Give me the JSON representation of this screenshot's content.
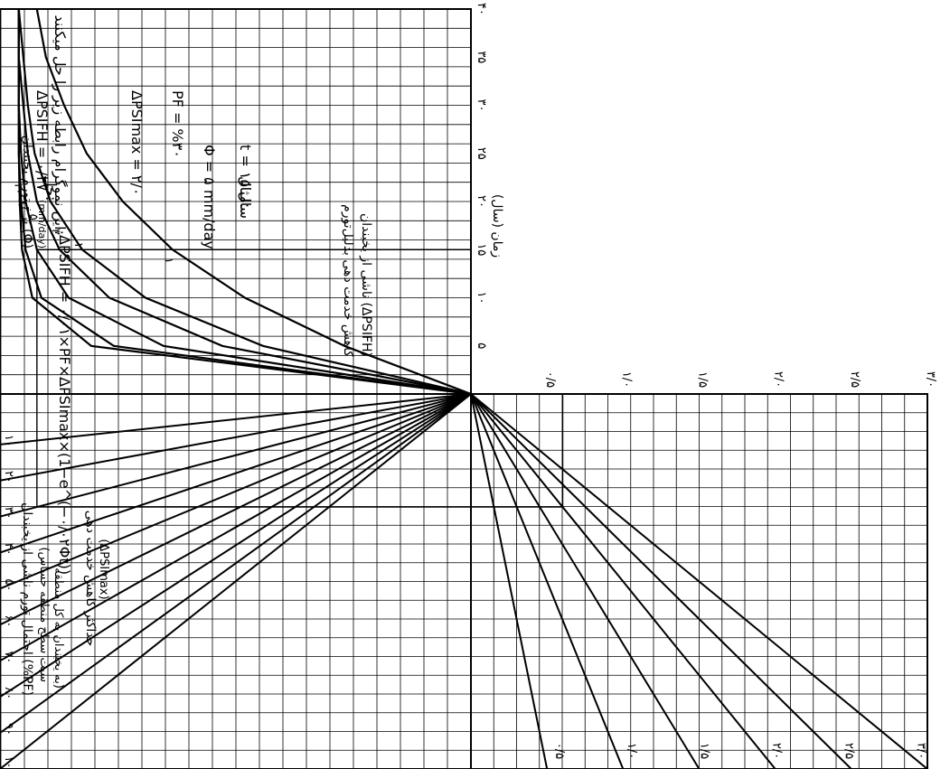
{
  "chart_data": {
    "type": "line",
    "title": "",
    "time_axis": {
      "label": "زمان (سال)",
      "ticks": [
        "۵",
        "۱۰",
        "۱۵",
        "۲۰",
        "۲۵",
        "۳۰",
        "۳۵",
        "۴۰"
      ],
      "range": [
        0,
        40
      ]
    },
    "heave_rate": {
      "title": "نرخ تورم یخبندان (Φ)",
      "unit": "(mm/day)",
      "curves": [
        {
          "label": "۱",
          "phi": 1,
          "x": [
            0,
            5,
            10,
            15,
            20,
            25,
            30,
            35,
            40
          ],
          "y": [
            0,
            0.28,
            0.5,
            0.66,
            0.77,
            0.85,
            0.9,
            0.94,
            0.96
          ]
        },
        {
          "label": "۲",
          "phi": 2,
          "x": [
            0,
            5,
            10,
            15,
            20,
            25,
            30,
            35,
            40
          ],
          "y": [
            0,
            0.46,
            0.72,
            0.86,
            0.93,
            0.965,
            0.98,
            0.99,
            1.0
          ]
        },
        {
          "label": "۳",
          "phi": 3,
          "x": [
            0,
            5,
            10,
            15,
            20,
            25,
            30,
            35,
            40
          ],
          "y": [
            0,
            0.55,
            0.8,
            0.91,
            0.96,
            0.98,
            0.99,
            1.0,
            1.0
          ]
        },
        {
          "label": "۵",
          "phi": 5,
          "x": [
            0,
            5,
            10,
            15,
            20,
            25,
            30,
            35,
            40
          ],
          "y": [
            0,
            0.68,
            0.89,
            0.96,
            0.985,
            0.995,
            1.0,
            1.0,
            1.0
          ]
        },
        {
          "label": "۸",
          "phi": 8,
          "x": [
            0,
            5,
            10,
            15,
            20,
            25,
            30,
            35,
            40
          ],
          "y": [
            0,
            0.79,
            0.95,
            0.985,
            0.995,
            1.0,
            1.0,
            1.0,
            1.0
          ]
        },
        {
          "label": "۱۰",
          "phi": 10,
          "x": [
            0,
            5,
            10,
            15,
            20,
            25,
            30,
            35,
            40
          ],
          "y": [
            0,
            0.84,
            0.97,
            0.993,
            0.998,
            1.0,
            1.0,
            1.0,
            1.0
          ]
        }
      ]
    },
    "probability": {
      "title": "احتمال تورم ناشی از یخبندان (%PF)",
      "subtitle1": "(سبت سطح منطقه حساس",
      "subtitle2": "به یخبندان به کل منطقه)",
      "ticks": [
        "۱۰",
        "۲۰",
        "۳۰",
        "۴۰",
        "۵۰",
        "۶۰",
        "۷۰",
        "۸۰",
        "۹۰",
        "۱۰۰"
      ],
      "values": [
        10,
        20,
        30,
        40,
        50,
        60,
        70,
        80,
        90,
        100
      ]
    },
    "max_loss": {
      "title": "حداکثر کاهش خدمت دهی",
      "subtitle": "(ΔPSImax)",
      "labels": [
        "۰/۵",
        "۱/۰",
        "۱/۵",
        "۲/۰",
        "۲/۵",
        "۳/۰"
      ],
      "values": [
        0.5,
        1.0,
        1.5,
        2.0,
        2.5,
        3.0
      ]
    },
    "output_axis": {
      "label1": "کاهش خدمت دهی بدلیل‌تورم",
      "label2": "ناشی از یخبندان (ΔPSIFH)",
      "ticks": [
        "۰/۵",
        "۱/۰",
        "۱/۵",
        "۲/۰",
        "۲/۵",
        "۳/۰"
      ],
      "range": [
        0,
        3.0
      ]
    }
  },
  "example": {
    "equation_intro": "این نموگرام رابطه زیر را حل میکنند:",
    "equation": "ΔPSIFH = ۰/۰۱×PF×ΔPSImax×(1−e^(−۰/۰۲Φt))",
    "given_label": "مثال:",
    "t": "t = ۱۵ سال",
    "phi": "Φ = ۵ mm/day",
    "pf": "PF = %۳۰",
    "psimax": "ΔPSImax = ۲/۰",
    "solution_label": "حل:",
    "result": "ΔPSIFH = ۰/۴۷"
  }
}
